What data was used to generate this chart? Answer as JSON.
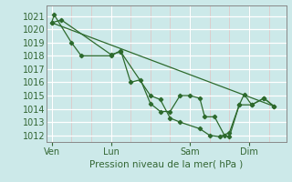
{
  "background_color": "#cce9e9",
  "grid_color_major": "#ffffff",
  "grid_color_minor": "#e8d0d0",
  "line_color": "#2d6a2d",
  "marker_color": "#2d6a2d",
  "xlabel": "Pression niveau de la mer( hPa )",
  "ylim": [
    1011.5,
    1021.8
  ],
  "yticks": [
    1012,
    1013,
    1014,
    1015,
    1016,
    1017,
    1018,
    1019,
    1020,
    1021
  ],
  "xtick_labels": [
    "Ven",
    "Lun",
    "Sam",
    "Dim"
  ],
  "xtick_positions": [
    0,
    24,
    56,
    80
  ],
  "xlim": [
    -2,
    95
  ],
  "vline_positions": [
    0,
    24,
    56,
    80
  ],
  "series1_x": [
    0,
    1,
    8,
    12,
    24,
    28,
    32,
    36,
    40,
    44,
    48,
    52,
    56,
    60,
    62,
    66,
    70,
    72,
    76,
    78,
    81,
    86,
    90
  ],
  "series1_y": [
    1020.5,
    1021.1,
    1019.0,
    1018.0,
    1018.0,
    1018.4,
    1016.0,
    1016.2,
    1014.4,
    1013.8,
    1013.8,
    1015.0,
    1015.0,
    1014.8,
    1013.4,
    1013.4,
    1012.0,
    1011.9,
    1014.3,
    1015.1,
    1014.3,
    1014.8,
    1014.2
  ],
  "series2_x": [
    0,
    4,
    24,
    28,
    40,
    44,
    48,
    52,
    60,
    64,
    68,
    72,
    76,
    81,
    86,
    90
  ],
  "series2_y": [
    1020.5,
    1020.7,
    1018.1,
    1018.3,
    1015.0,
    1014.7,
    1013.3,
    1013.0,
    1012.5,
    1012.0,
    1011.9,
    1012.2,
    1014.3,
    1014.3,
    1014.8,
    1014.2
  ],
  "series3_x": [
    0,
    90
  ],
  "series3_y": [
    1020.5,
    1014.2
  ],
  "minor_xticks": [
    8,
    16,
    32,
    40,
    48,
    64,
    72,
    88
  ]
}
